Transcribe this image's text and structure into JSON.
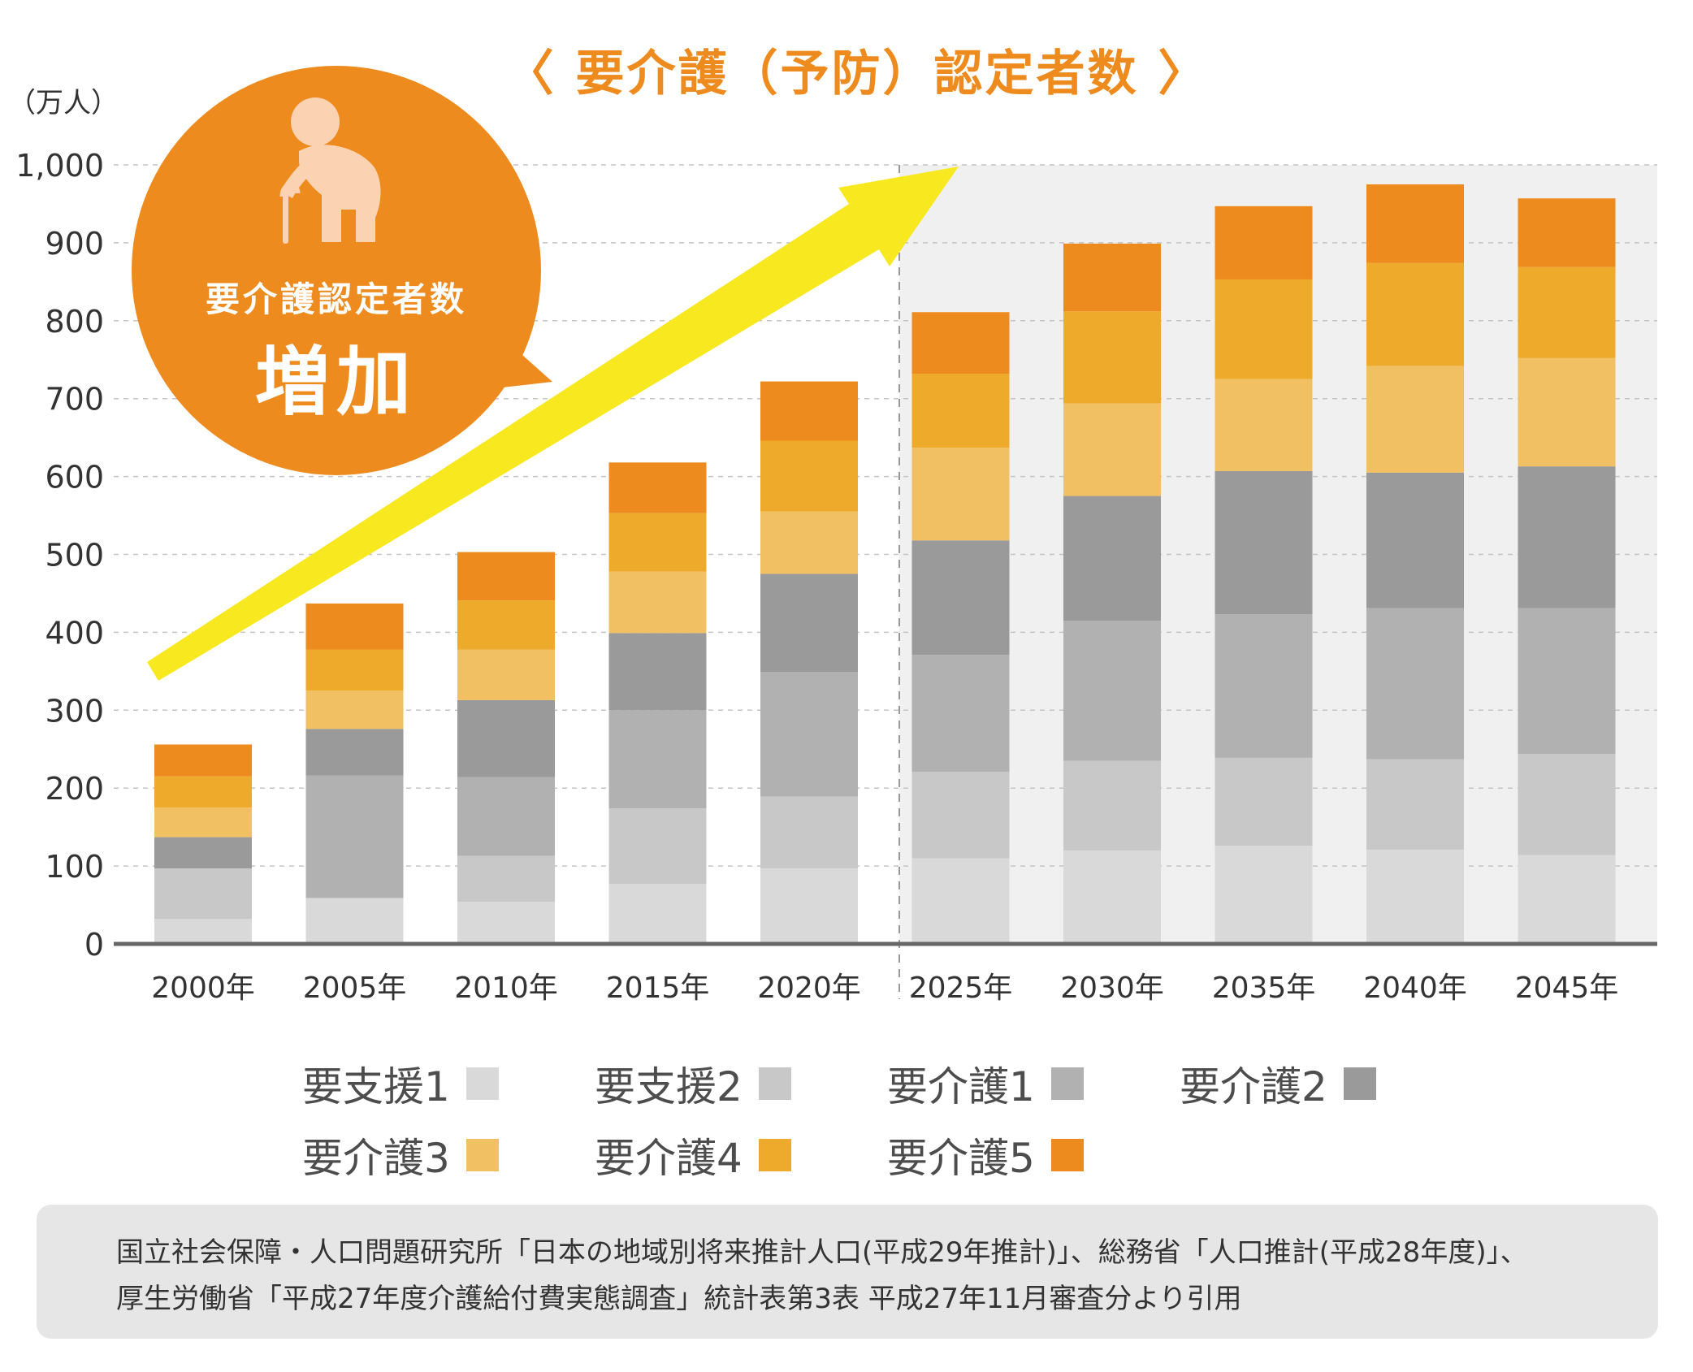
{
  "chart_data": {
    "type": "bar",
    "stacked": true,
    "title": "〈 要介護（予防）認定者数 〉",
    "unit_label": "（万人）",
    "categories": [
      "2000年",
      "2005年",
      "2010年",
      "2015年",
      "2020年",
      "2025年",
      "2030年",
      "2035年",
      "2040年",
      "2045年"
    ],
    "projection_start_category": "2025年",
    "ylim": [
      0,
      1000
    ],
    "yticks": [
      "0",
      "100",
      "200",
      "300",
      "400",
      "500",
      "600",
      "700",
      "800",
      "900",
      "1,000"
    ],
    "grid": true,
    "series": [
      {
        "name": "要支援1",
        "color": "#d9d9d9",
        "values": [
          32,
          59,
          54,
          77,
          97,
          110,
          120,
          126,
          121,
          114
        ]
      },
      {
        "name": "要支援2",
        "color": "#c8c8c8",
        "values": [
          65,
          0,
          59,
          97,
          92,
          111,
          115,
          113,
          116,
          130
        ]
      },
      {
        "name": "要介護1",
        "color": "#b1b1b1",
        "values": [
          0,
          157,
          101,
          126,
          160,
          150,
          180,
          184,
          194,
          187
        ]
      },
      {
        "name": "要介護2",
        "color": "#9a9a9a",
        "values": [
          40,
          60,
          99,
          99,
          126,
          147,
          160,
          184,
          174,
          182
        ]
      },
      {
        "name": "要介護3",
        "color": "#f0c062",
        "values": [
          38,
          49,
          65,
          79,
          80,
          119,
          119,
          118,
          137,
          139
        ]
      },
      {
        "name": "要介護4",
        "color": "#eeaa2a",
        "values": [
          40,
          53,
          63,
          75,
          91,
          95,
          118,
          128,
          132,
          117
        ]
      },
      {
        "name": "要介護5",
        "color": "#ee8b1e",
        "values": [
          41,
          59,
          62,
          65,
          76,
          79,
          87,
          94,
          101,
          88
        ]
      }
    ],
    "legend_position": "bottom"
  },
  "callout": {
    "line1": "要介護認定者数",
    "line2": "増加",
    "icon": "elderly-person-with-cane-icon",
    "color": "#ee8b1e"
  },
  "trend_arrow_color": "#f8e820",
  "source": {
    "line1": "国立社会保障・人口問題研究所「日本の地域別将来推計人口(平成29年推計)」、総務省「人口推計(平成28年度)」、",
    "line2": "厚生労働省「平成27年度介護給付費実態調査」統計表第3表 平成27年11月審査分より引用"
  }
}
